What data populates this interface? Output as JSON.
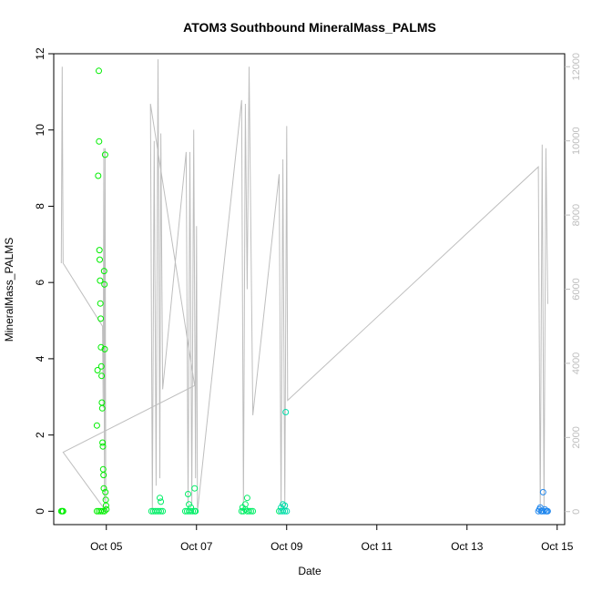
{
  "chart_data": {
    "type": "scatter",
    "title": "ATOM3 Southbound MineralMass_PALMS",
    "xlabel": "Date",
    "ylabel": "MineralMass_PALMS",
    "x_ticks": [
      "Oct 05",
      "Oct 07",
      "Oct 09",
      "Oct 11",
      "Oct 13",
      "Oct 15"
    ],
    "y_ticks": [
      "0",
      "2",
      "4",
      "6",
      "8",
      "10",
      "12"
    ],
    "y2_ticks": [
      "0",
      "2000",
      "4000",
      "6000",
      "8000",
      "10000",
      "12000"
    ],
    "xlim": [
      "2017-10-03T20:00",
      "2017-10-15T04:00"
    ],
    "ylim": [
      -0.35,
      12.0
    ],
    "y2lim": [
      -350,
      12350
    ],
    "grid": false,
    "legend": "none",
    "point_series": {
      "marker": "open-circle",
      "color_scale": [
        "#00ee00",
        "#00ee66",
        "#00ddaa",
        "#2288ee"
      ],
      "points": [
        [
          "2017-10-04T00:00",
          0.0
        ],
        [
          "2017-10-04T00:30",
          0.0
        ],
        [
          "2017-10-04T01:00",
          0.0
        ],
        [
          "2017-10-04T19:00",
          2.25
        ],
        [
          "2017-10-04T19:20",
          3.7
        ],
        [
          "2017-10-04T19:40",
          8.8
        ],
        [
          "2017-10-04T20:00",
          11.55
        ],
        [
          "2017-10-04T20:10",
          9.7
        ],
        [
          "2017-10-04T20:20",
          6.85
        ],
        [
          "2017-10-04T20:30",
          6.6
        ],
        [
          "2017-10-04T20:40",
          6.05
        ],
        [
          "2017-10-04T20:50",
          5.45
        ],
        [
          "2017-10-04T21:00",
          5.05
        ],
        [
          "2017-10-04T21:10",
          4.3
        ],
        [
          "2017-10-04T21:20",
          3.8
        ],
        [
          "2017-10-04T21:30",
          3.55
        ],
        [
          "2017-10-04T21:40",
          2.85
        ],
        [
          "2017-10-04T21:50",
          2.7
        ],
        [
          "2017-10-04T22:00",
          1.8
        ],
        [
          "2017-10-04T22:10",
          1.7
        ],
        [
          "2017-10-04T22:20",
          1.1
        ],
        [
          "2017-10-04T22:30",
          0.95
        ],
        [
          "2017-10-04T22:40",
          0.6
        ],
        [
          "2017-10-04T22:50",
          6.3
        ],
        [
          "2017-10-04T23:00",
          5.95
        ],
        [
          "2017-10-04T23:10",
          4.25
        ],
        [
          "2017-10-04T23:20",
          9.35
        ],
        [
          "2017-10-04T23:30",
          0.5
        ],
        [
          "2017-10-04T23:40",
          0.3
        ],
        [
          "2017-10-04T23:50",
          0.15
        ],
        [
          "2017-10-05T00:00",
          0.05
        ],
        [
          "2017-10-04T19:00",
          0.0
        ],
        [
          "2017-10-04T20:00",
          0.0
        ],
        [
          "2017-10-04T21:00",
          0.0
        ],
        [
          "2017-10-04T22:00",
          0.0
        ],
        [
          "2017-10-04T23:00",
          0.0
        ],
        [
          "2017-10-06T00:00",
          0.0
        ],
        [
          "2017-10-06T01:00",
          0.0
        ],
        [
          "2017-10-06T02:00",
          0.0
        ],
        [
          "2017-10-06T03:00",
          0.0
        ],
        [
          "2017-10-06T04:00",
          0.0
        ],
        [
          "2017-10-06T05:00",
          0.0
        ],
        [
          "2017-10-06T04:30",
          0.35
        ],
        [
          "2017-10-06T05:00",
          0.25
        ],
        [
          "2017-10-06T06:00",
          0.0
        ],
        [
          "2017-10-06T18:00",
          0.0
        ],
        [
          "2017-10-06T19:00",
          0.0
        ],
        [
          "2017-10-06T20:00",
          0.0
        ],
        [
          "2017-10-06T21:00",
          0.0
        ],
        [
          "2017-10-06T22:00",
          0.0
        ],
        [
          "2017-10-06T23:00",
          0.0
        ],
        [
          "2017-10-06T19:30",
          0.45
        ],
        [
          "2017-10-06T20:00",
          0.18
        ],
        [
          "2017-10-06T21:00",
          0.1
        ],
        [
          "2017-10-06T23:00",
          0.6
        ],
        [
          "2017-10-06T23:30",
          0.0
        ],
        [
          "2017-10-08T00:00",
          0.0
        ],
        [
          "2017-10-08T01:00",
          0.0
        ],
        [
          "2017-10-08T02:00",
          0.05
        ],
        [
          "2017-10-08T03:00",
          0.0
        ],
        [
          "2017-10-08T04:00",
          0.0
        ],
        [
          "2017-10-08T05:00",
          0.0
        ],
        [
          "2017-10-08T00:30",
          0.1
        ],
        [
          "2017-10-08T02:00",
          0.18
        ],
        [
          "2017-10-08T03:00",
          0.35
        ],
        [
          "2017-10-08T06:00",
          0.0
        ],
        [
          "2017-10-08T20:00",
          0.0
        ],
        [
          "2017-10-08T21:00",
          0.0
        ],
        [
          "2017-10-08T22:00",
          0.0
        ],
        [
          "2017-10-08T23:00",
          0.0
        ],
        [
          "2017-10-09T00:00",
          0.0
        ],
        [
          "2017-10-08T21:00",
          0.1
        ],
        [
          "2017-10-08T22:00",
          0.18
        ],
        [
          "2017-10-08T23:00",
          0.15
        ],
        [
          "2017-10-08T23:30",
          2.6
        ],
        [
          "2017-10-14T14:00",
          0.0
        ],
        [
          "2017-10-14T14:30",
          0.05
        ],
        [
          "2017-10-14T15:00",
          0.1
        ],
        [
          "2017-10-14T15:30",
          0.0
        ],
        [
          "2017-10-14T16:00",
          0.0
        ],
        [
          "2017-10-14T16:30",
          0.5
        ],
        [
          "2017-10-14T17:00",
          0.0
        ],
        [
          "2017-10-14T17:30",
          0.05
        ],
        [
          "2017-10-14T18:00",
          0.0
        ],
        [
          "2017-10-14T18:30",
          0.0
        ],
        [
          "2017-10-14T19:00",
          0.0
        ]
      ]
    },
    "line_series": {
      "axis": "right",
      "color": "#bebebe",
      "points": [
        [
          "2017-10-04T00:00",
          6700
        ],
        [
          "2017-10-04T00:30",
          12000
        ],
        [
          "2017-10-04T01:00",
          6700
        ],
        [
          "2017-10-04T22:00",
          5000
        ],
        [
          "2017-10-04T22:20",
          2800
        ],
        [
          "2017-10-04T22:40",
          9800
        ],
        [
          "2017-10-04T23:00",
          300
        ],
        [
          "2017-10-04T23:20",
          9800
        ],
        [
          "2017-10-04T23:40",
          100
        ],
        [
          "2017-10-05T00:00",
          0
        ],
        [
          "2017-10-04T01:00",
          1600
        ],
        [
          "2017-10-06T23:00",
          3400
        ],
        [
          "2017-10-05T23:30",
          11000
        ],
        [
          "2017-10-06T00:30",
          0
        ],
        [
          "2017-10-06T01:30",
          10000
        ],
        [
          "2017-10-06T02:30",
          700
        ],
        [
          "2017-10-06T03:30",
          12200
        ],
        [
          "2017-10-06T04:30",
          900
        ],
        [
          "2017-10-06T05:00",
          10200
        ],
        [
          "2017-10-06T06:00",
          3300
        ],
        [
          "2017-10-06T18:30",
          9700
        ],
        [
          "2017-10-06T19:30",
          200
        ],
        [
          "2017-10-06T20:30",
          9700
        ],
        [
          "2017-10-06T21:30",
          200
        ],
        [
          "2017-10-06T22:30",
          10300
        ],
        [
          "2017-10-06T23:30",
          900
        ],
        [
          "2017-10-07T00:00",
          7700
        ],
        [
          "2017-10-07T00:30",
          0
        ],
        [
          "2017-10-08T00:00",
          11100
        ],
        [
          "2017-10-08T01:00",
          100
        ],
        [
          "2017-10-08T02:00",
          11000
        ],
        [
          "2017-10-08T03:00",
          6000
        ],
        [
          "2017-10-08T04:00",
          12000
        ],
        [
          "2017-10-08T05:00",
          7200
        ],
        [
          "2017-10-08T06:00",
          2600
        ],
        [
          "2017-10-08T20:00",
          9100
        ],
        [
          "2017-10-08T21:00",
          0
        ],
        [
          "2017-10-08T22:00",
          9500
        ],
        [
          "2017-10-08T23:00",
          100
        ],
        [
          "2017-10-09T00:00",
          10400
        ],
        [
          "2017-10-09T00:30",
          3000
        ],
        [
          "2017-10-14T14:00",
          9300
        ],
        [
          "2017-10-14T15:00",
          0
        ],
        [
          "2017-10-14T16:00",
          9900
        ],
        [
          "2017-10-14T17:00",
          100
        ],
        [
          "2017-10-14T18:00",
          9800
        ],
        [
          "2017-10-14T19:00",
          5600
        ]
      ]
    }
  }
}
